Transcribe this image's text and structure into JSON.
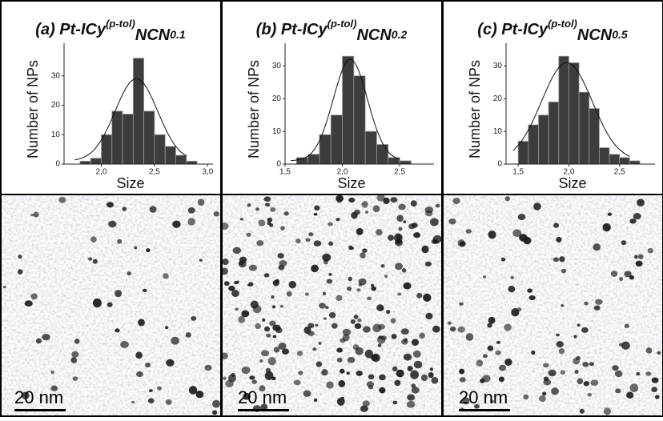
{
  "chart_data": [
    {
      "type": "histogram",
      "title": [
        "(a) Pt-ICy",
        "(p-tol)",
        "NCN",
        "0.1"
      ],
      "x_label": "Size",
      "y_label": "Number of NPs",
      "bins": [
        1.8,
        1.9,
        2.0,
        2.1,
        2.2,
        2.3,
        2.4,
        2.5,
        2.6,
        2.7,
        2.8,
        2.9
      ],
      "counts": [
        1,
        2,
        10,
        18,
        17,
        36,
        18,
        10,
        6,
        3,
        1
      ],
      "color": "#3c3c3c",
      "fit": {
        "mean": 2.33,
        "sd": 0.2,
        "peak": 28
      },
      "xlim": [
        1.65,
        3.05
      ],
      "ylim": [
        0,
        40
      ],
      "xticks": [
        {
          "value": 2.0,
          "label": "2,0"
        },
        {
          "value": 2.5,
          "label": "2,5"
        },
        {
          "value": 3.0,
          "label": "3,0"
        }
      ],
      "yticks": [
        0,
        10,
        20,
        30
      ]
    },
    {
      "type": "histogram",
      "title": [
        "(b) Pt-ICy",
        "(p-tol)",
        "NCN",
        "0.2"
      ],
      "x_label": "Size",
      "y_label": "Number of NPs",
      "bins": [
        1.6,
        1.7,
        1.8,
        1.9,
        2.0,
        2.1,
        2.2,
        2.3,
        2.4,
        2.5,
        2.6
      ],
      "counts": [
        2,
        3,
        9,
        15,
        33,
        27,
        10,
        6,
        2,
        1
      ],
      "color": "#3c3c3c",
      "fit": {
        "mean": 2.07,
        "sd": 0.15,
        "peak": 31
      },
      "xlim": [
        1.5,
        2.8
      ],
      "ylim": [
        0,
        36
      ],
      "xticks": [
        {
          "value": 1.5,
          "label": "1,5"
        },
        {
          "value": 2.0,
          "label": "2,0"
        },
        {
          "value": 2.5,
          "label": "2,5"
        }
      ],
      "yticks": [
        0,
        10,
        20,
        30
      ]
    },
    {
      "type": "histogram",
      "title": [
        "(c) Pt-ICy",
        "(p-tol)",
        "NCN",
        "0.5"
      ],
      "x_label": "Size",
      "y_label": "Number of NPs",
      "bins": [
        1.5,
        1.6,
        1.7,
        1.8,
        1.9,
        2.0,
        2.1,
        2.2,
        2.3,
        2.4,
        2.5,
        2.6,
        2.7
      ],
      "counts": [
        7,
        12,
        15,
        19,
        33,
        31,
        22,
        17,
        5,
        3,
        2,
        1
      ],
      "color": "#3c3c3c",
      "fit": {
        "mean": 1.98,
        "sd": 0.25,
        "peak": 30
      },
      "xlim": [
        1.38,
        2.85
      ],
      "ylim": [
        0,
        36
      ],
      "xticks": [
        {
          "value": 1.5,
          "label": "1,5"
        },
        {
          "value": 2.0,
          "label": "2,0"
        },
        {
          "value": 2.5,
          "label": "2,5"
        }
      ],
      "yticks": [
        0,
        10,
        20,
        30
      ]
    }
  ],
  "micrographs": [
    {
      "scale_bar": "20 nm"
    },
    {
      "scale_bar": "20 nm"
    },
    {
      "scale_bar": "20 nm"
    }
  ]
}
